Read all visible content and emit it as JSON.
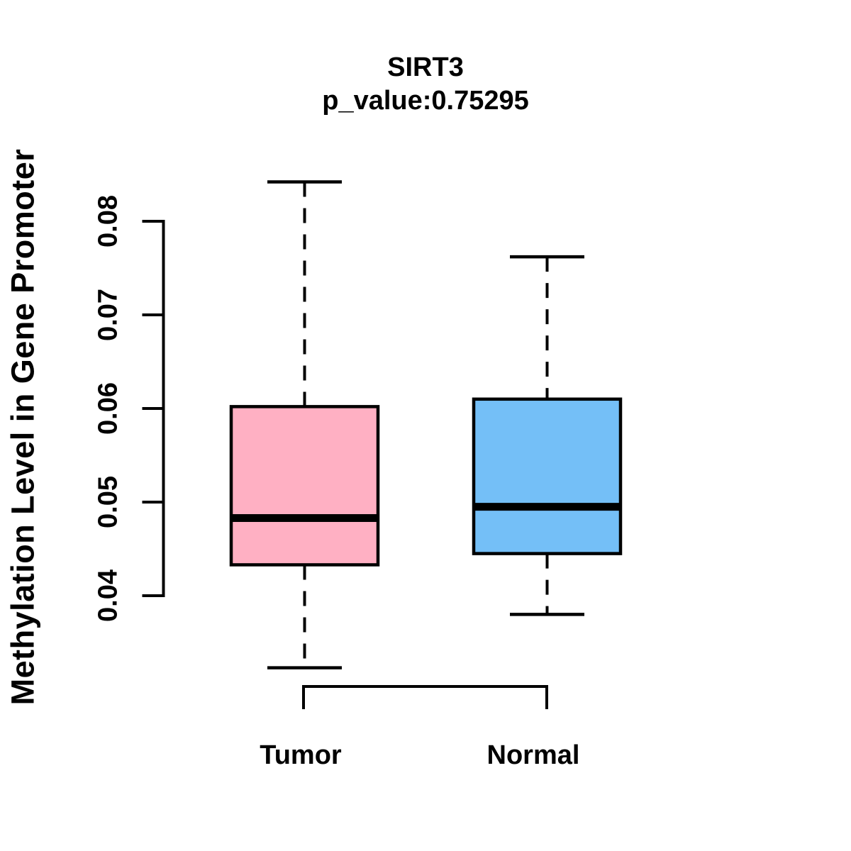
{
  "chart_data": {
    "type": "boxplot",
    "title": "SIRT3",
    "subtitle": "p_value:0.75295",
    "gene": "SIRT3",
    "p_value": "0.75295",
    "ylabel": "Methylation Level in Gene Promoter",
    "xlabel": "",
    "y_ticks": [
      "0.04",
      "0.05",
      "0.06",
      "0.07",
      "0.08"
    ],
    "y_axis_range": [
      0.04,
      0.08
    ],
    "grid": false,
    "legend_position": "none",
    "categories": [
      "Tumor",
      "Normal"
    ],
    "series": [
      {
        "name": "Tumor",
        "color": "#FFB0C3",
        "border_color": "#000000",
        "whisker_low": 0.0323,
        "q1": 0.0433,
        "median": 0.0483,
        "q3": 0.0602,
        "whisker_high": 0.0842
      },
      {
        "name": "Normal",
        "color": "#74BFF7",
        "border_color": "#000000",
        "whisker_low": 0.038,
        "q1": 0.0445,
        "median": 0.0495,
        "q3": 0.061,
        "whisker_high": 0.0762
      }
    ]
  }
}
